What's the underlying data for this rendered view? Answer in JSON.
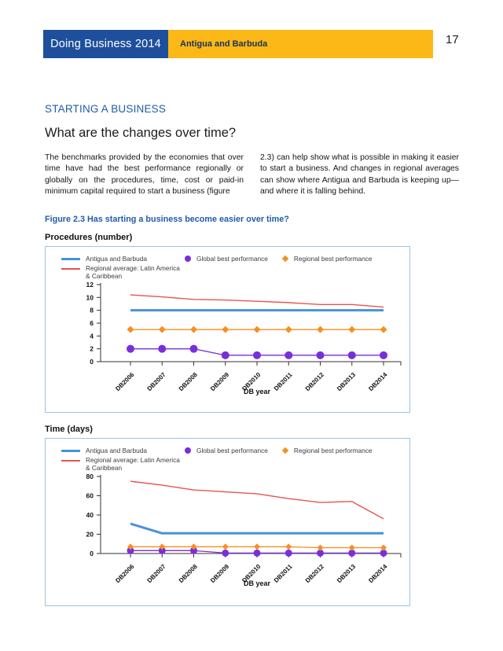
{
  "header": {
    "brand": "Doing Business 2014",
    "economy": "Antigua and Barbuda",
    "page_number": "17"
  },
  "section": {
    "heading": "STARTING A BUSINESS",
    "subheading": "What are the changes over time?",
    "body_columns": [
      "The benchmarks provided by the economies that over time have had the best performance regionally or globally on the procedures, time, cost or paid-in minimum capital required to start a business (figure",
      "2.3) can help show what is possible in making it easier to start a business. And changes in regional averages can show where Antigua and Barbuda is keeping up— and where it is falling behind."
    ]
  },
  "figure": {
    "caption": "Figure 2.3 Has starting a business become easier over time?"
  },
  "colors": {
    "header_blue": "#1e4f9c",
    "header_yellow": "#fbb817",
    "header_economy_text": "#1a3156",
    "heading_blue": "#1f5ca9",
    "chart_border": "#9cc3e6",
    "axis": "#333333"
  },
  "chart_data": [
    {
      "type": "line",
      "title": "Procedures (number)",
      "xlabel": "DB year",
      "categories": [
        "DB2006",
        "DB2007",
        "DB2008",
        "DB2009",
        "DB2010",
        "DB2011",
        "DB2012",
        "DB2013",
        "DB2014"
      ],
      "ylim": [
        0,
        12
      ],
      "yticks": [
        0,
        2,
        4,
        6,
        8,
        10,
        12
      ],
      "legend_position": "top-left",
      "grid": false,
      "series": [
        {
          "name": "Antigua and Barbuda",
          "color": "#4991db",
          "marker": "none",
          "line_width": 3,
          "values": [
            8,
            8,
            8,
            8,
            8,
            8,
            8,
            8,
            8
          ]
        },
        {
          "name": "Regional average: Latin America & Caribbean",
          "legend_lines": [
            "Regional average: Latin America",
            "& Caribbean"
          ],
          "color": "#e9534e",
          "marker": "none",
          "line_width": 1.4,
          "values": [
            10.4,
            10.1,
            9.7,
            9.6,
            9.4,
            9.2,
            8.9,
            8.9,
            8.5
          ]
        },
        {
          "name": "Global best performance",
          "color": "#7a2edb",
          "marker": "circle",
          "marker_size": 5,
          "line_width": 1.3,
          "values": [
            2,
            2,
            2,
            1,
            1,
            1,
            1,
            1,
            1
          ]
        },
        {
          "name": "Regional best performance",
          "color": "#f78f1e",
          "marker": "diamond",
          "marker_size": 4.5,
          "line_width": 1.3,
          "values": [
            5,
            5,
            5,
            5,
            5,
            5,
            5,
            5,
            5
          ]
        }
      ]
    },
    {
      "type": "line",
      "title": "Time (days)",
      "xlabel": "DB year",
      "categories": [
        "DB2006",
        "DB2007",
        "DB2008",
        "DB2009",
        "DB2010",
        "DB2011",
        "DB2012",
        "DB2013",
        "DB2014"
      ],
      "ylim": [
        0,
        80
      ],
      "yticks": [
        0,
        20,
        40,
        60,
        80
      ],
      "legend_position": "top-left",
      "grid": false,
      "series": [
        {
          "name": "Antigua and Barbuda",
          "color": "#4991db",
          "marker": "none",
          "line_width": 3,
          "values": [
            31,
            21,
            21,
            21,
            21,
            21,
            21,
            21,
            21
          ]
        },
        {
          "name": "Regional average: Latin America & Caribbean",
          "legend_lines": [
            "Regional average: Latin America",
            "& Caribbean"
          ],
          "color": "#e9534e",
          "marker": "none",
          "line_width": 1.4,
          "values": [
            75,
            71,
            66,
            64,
            62,
            57,
            53,
            54,
            36
          ]
        },
        {
          "name": "Global best performance",
          "color": "#7a2edb",
          "marker": "circle",
          "marker_size": 4.5,
          "line_width": 1.3,
          "values": [
            3,
            3,
            3,
            0.5,
            0.5,
            0.5,
            0.5,
            0.5,
            0.5
          ]
        },
        {
          "name": "Regional best performance",
          "color": "#f78f1e",
          "marker": "diamond",
          "marker_size": 4,
          "line_width": 1.3,
          "values": [
            7,
            7,
            7,
            7,
            7,
            7,
            6,
            6,
            6
          ]
        }
      ]
    }
  ]
}
